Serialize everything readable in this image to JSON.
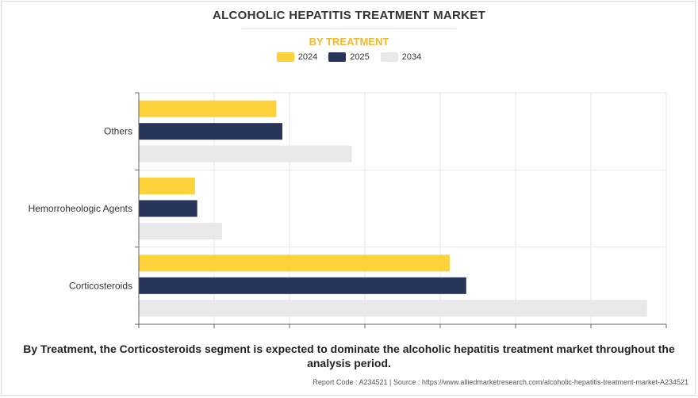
{
  "title": "ALCOHOLIC HEPATITIS TREATMENT MARKET",
  "subtitle": "BY TREATMENT",
  "footnote": "By Treatment, the Corticosteroids segment is expected to dominate the alcoholic hepatitis treatment market throughout the analysis period.",
  "source": "Report Code : A234521  |  Source : https://www.alliedmarketresearch.com/alcoholic-hepatitis-treatment-market-A234521",
  "colors": {
    "y2024": "#fdd23b",
    "y2025": "#263559",
    "y2034": "#e8e8e8",
    "accent": "#f5b82e"
  },
  "chart_data": {
    "type": "bar",
    "orientation": "horizontal",
    "categories": [
      "Others",
      "Hemorroheologic Agents",
      "Corticosteroids"
    ],
    "series": [
      {
        "name": "2024",
        "values": [
          0.182,
          0.074,
          0.412
        ]
      },
      {
        "name": "2025",
        "values": [
          0.19,
          0.077,
          0.434
        ]
      },
      {
        "name": "2034",
        "values": [
          0.282,
          0.11,
          0.674
        ]
      }
    ],
    "xlim": [
      0,
      0.7
    ],
    "x_tick_labels_shown": false,
    "grid": true,
    "legend_position": "top-center"
  }
}
